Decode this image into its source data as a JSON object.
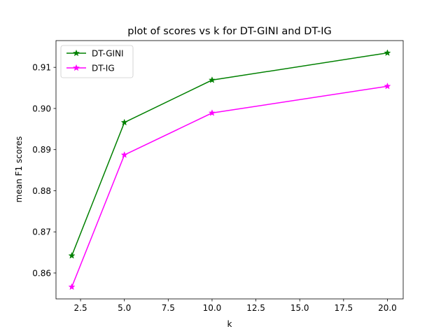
{
  "chart_data": {
    "type": "line",
    "title": "plot of scores vs k for DT-GINI and DT-IG",
    "xlabel": "k",
    "ylabel": "mean F1 scores",
    "x": [
      2,
      5,
      10,
      20
    ],
    "series": [
      {
        "name": "DT-GINI",
        "color": "#008000",
        "marker": "star",
        "values": [
          0.8642,
          0.8966,
          0.9069,
          0.9135
        ]
      },
      {
        "name": "DT-IG",
        "color": "#ff00ff",
        "marker": "star",
        "values": [
          0.8566,
          0.8887,
          0.8989,
          0.9054
        ]
      }
    ],
    "xlim": [
      1.1,
      20.9
    ],
    "ylim": [
      0.8537,
      0.9165
    ],
    "xticks": [
      2.5,
      5.0,
      7.5,
      10.0,
      12.5,
      15.0,
      17.5,
      20.0
    ],
    "xtick_labels": [
      "2.5",
      "5.0",
      "7.5",
      "10.0",
      "12.5",
      "15.0",
      "17.5",
      "20.0"
    ],
    "yticks": [
      0.86,
      0.87,
      0.88,
      0.89,
      0.9,
      0.91
    ],
    "ytick_labels": [
      "0.86",
      "0.87",
      "0.88",
      "0.89",
      "0.90",
      "0.91"
    ],
    "grid": false,
    "legend": "top-left"
  }
}
